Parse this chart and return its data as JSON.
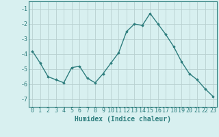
{
  "x": [
    0,
    1,
    2,
    3,
    4,
    5,
    6,
    7,
    8,
    9,
    10,
    11,
    12,
    13,
    14,
    15,
    16,
    17,
    18,
    19,
    20,
    21,
    22,
    23
  ],
  "y": [
    -3.8,
    -4.6,
    -5.5,
    -5.7,
    -5.9,
    -4.9,
    -4.8,
    -5.6,
    -5.9,
    -5.3,
    -4.6,
    -3.9,
    -2.5,
    -2.0,
    -2.1,
    -1.3,
    -2.0,
    -2.7,
    -3.5,
    -4.5,
    -5.3,
    -5.7,
    -6.3,
    -6.8
  ],
  "line_color": "#2d7d7d",
  "marker": "D",
  "marker_size": 1.8,
  "line_width": 1.0,
  "bg_color": "#d8f0f0",
  "grid_color": "#b8d0d0",
  "xlabel": "Humidex (Indice chaleur)",
  "xlabel_fontsize": 7,
  "tick_fontsize": 6,
  "xlim": [
    -0.5,
    23.5
  ],
  "ylim": [
    -7.5,
    -0.5
  ],
  "yticks": [
    -7,
    -6,
    -5,
    -4,
    -3,
    -2,
    -1
  ],
  "xticks": [
    0,
    1,
    2,
    3,
    4,
    5,
    6,
    7,
    8,
    9,
    10,
    11,
    12,
    13,
    14,
    15,
    16,
    17,
    18,
    19,
    20,
    21,
    22,
    23
  ]
}
